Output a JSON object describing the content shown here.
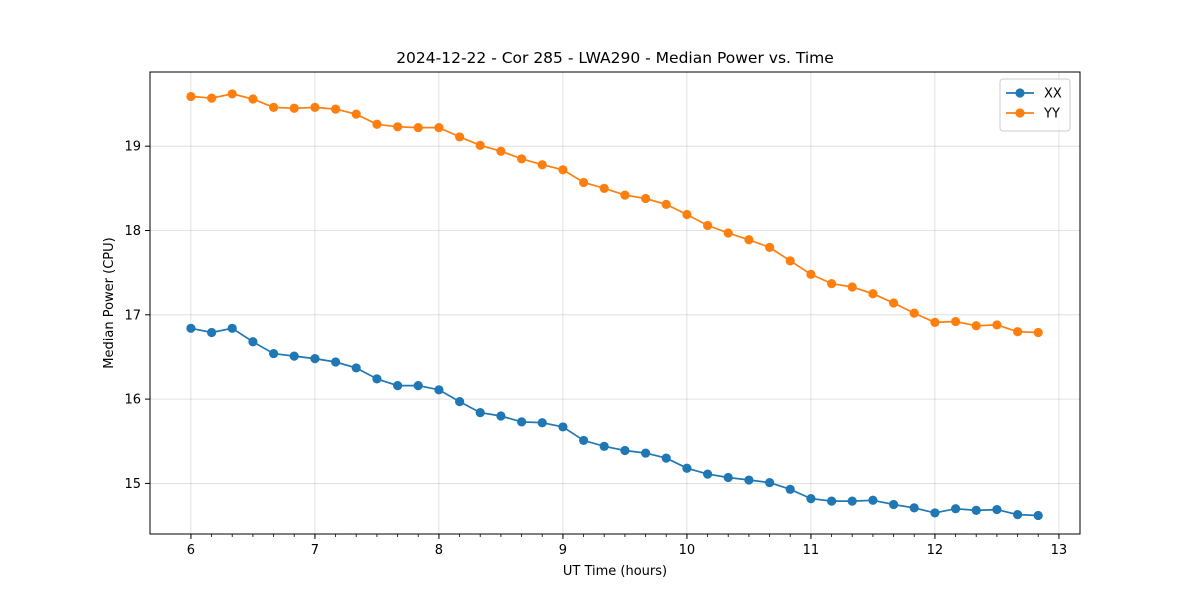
{
  "chart_data": {
    "type": "line",
    "title": "2024-12-22 - Cor 285 - LWA290 - Median Power vs. Time",
    "xlabel": "UT Time (hours)",
    "ylabel": "Median Power (CPU)",
    "xlim": [
      5.67,
      13.17
    ],
    "ylim": [
      14.4,
      19.88
    ],
    "xticks": [
      6,
      7,
      8,
      9,
      10,
      11,
      12,
      13
    ],
    "yticks": [
      15,
      16,
      17,
      18,
      19
    ],
    "grid": true,
    "legend_position": "top-right",
    "x": [
      6.0,
      6.167,
      6.333,
      6.5,
      6.667,
      6.833,
      7.0,
      7.167,
      7.333,
      7.5,
      7.667,
      7.833,
      8.0,
      8.167,
      8.333,
      8.5,
      8.667,
      8.833,
      9.0,
      9.167,
      9.333,
      9.5,
      9.667,
      9.833,
      10.0,
      10.167,
      10.333,
      10.5,
      10.667,
      10.833,
      11.0,
      11.167,
      11.333,
      11.5,
      11.667,
      11.833,
      12.0,
      12.167,
      12.333,
      12.5,
      12.667,
      12.833
    ],
    "series": [
      {
        "name": "XX",
        "color": "#1f77b4",
        "values": [
          16.84,
          16.79,
          16.84,
          16.68,
          16.54,
          16.51,
          16.48,
          16.44,
          16.37,
          16.24,
          16.16,
          16.16,
          16.11,
          15.97,
          15.84,
          15.8,
          15.73,
          15.72,
          15.67,
          15.51,
          15.44,
          15.39,
          15.36,
          15.3,
          15.18,
          15.11,
          15.07,
          15.04,
          15.01,
          14.93,
          14.82,
          14.79,
          14.79,
          14.8,
          14.75,
          14.71,
          14.65,
          14.7,
          14.68,
          14.69,
          14.63,
          14.62
        ]
      },
      {
        "name": "YY",
        "color": "#ff7f0e",
        "values": [
          19.59,
          19.57,
          19.62,
          19.56,
          19.46,
          19.45,
          19.46,
          19.44,
          19.38,
          19.26,
          19.23,
          19.22,
          19.22,
          19.11,
          19.01,
          18.94,
          18.85,
          18.78,
          18.72,
          18.57,
          18.5,
          18.42,
          18.38,
          18.31,
          18.19,
          18.06,
          17.97,
          17.89,
          17.8,
          17.64,
          17.48,
          17.37,
          17.33,
          17.25,
          17.14,
          17.02,
          16.91,
          16.92,
          16.87,
          16.88,
          16.8,
          16.79
        ]
      }
    ]
  }
}
